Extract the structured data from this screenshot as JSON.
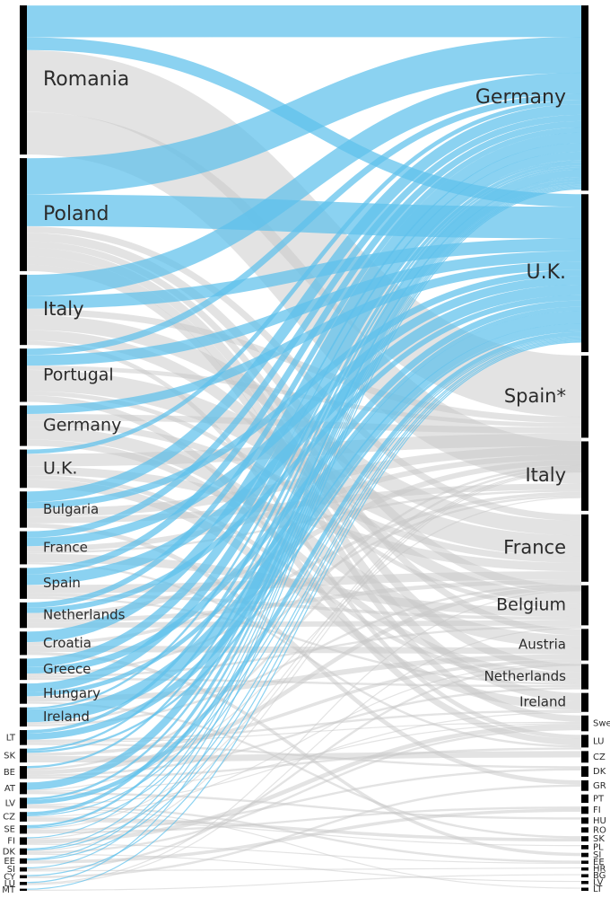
{
  "chart_data": {
    "type": "sankey",
    "title": "",
    "colors": {
      "highlight": "#5ec0ec",
      "base": "#c8c8c8",
      "node": "#000000",
      "background": "#ffffff"
    },
    "highlighted_targets": [
      "Germany",
      "U.K."
    ],
    "sources": [
      {
        "label": "Romania",
        "value": 140
      },
      {
        "label": "Poland",
        "value": 106
      },
      {
        "label": "Italy",
        "value": 66
      },
      {
        "label": "Portugal",
        "value": 50
      },
      {
        "label": "Germany",
        "value": 38
      },
      {
        "label": "U.K.",
        "value": 36
      },
      {
        "label": "Bulgaria",
        "value": 34
      },
      {
        "label": "France",
        "value": 31
      },
      {
        "label": "Spain",
        "value": 29
      },
      {
        "label": "Netherlands",
        "value": 24
      },
      {
        "label": "Croatia",
        "value": 22
      },
      {
        "label": "Greece",
        "value": 20
      },
      {
        "label": "Hungary",
        "value": 19
      },
      {
        "label": "Ireland",
        "value": 18
      },
      {
        "label": "LT",
        "value": 14
      },
      {
        "label": "SK",
        "value": 13
      },
      {
        "label": "BE",
        "value": 12
      },
      {
        "label": "AT",
        "value": 11
      },
      {
        "label": "LV",
        "value": 10
      },
      {
        "label": "CZ",
        "value": 9
      },
      {
        "label": "SE",
        "value": 8
      },
      {
        "label": "FI",
        "value": 7
      },
      {
        "label": "DK",
        "value": 6
      },
      {
        "label": "EE",
        "value": 5
      },
      {
        "label": "SI",
        "value": 4
      },
      {
        "label": "CY",
        "value": 3
      },
      {
        "label": "LU",
        "value": 3
      },
      {
        "label": "MT",
        "value": 2
      }
    ],
    "targets": [
      {
        "label": "Germany",
        "value": 176
      },
      {
        "label": "U.K.",
        "value": 150
      },
      {
        "label": "Spain*",
        "value": 78
      },
      {
        "label": "Italy",
        "value": 66
      },
      {
        "label": "France",
        "value": 64
      },
      {
        "label": "Belgium",
        "value": 38
      },
      {
        "label": "Austria",
        "value": 30
      },
      {
        "label": "Netherlands",
        "value": 24
      },
      {
        "label": "Ireland",
        "value": 18
      },
      {
        "label": "Sweden",
        "value": 15
      },
      {
        "label": "LU",
        "value": 12
      },
      {
        "label": "CZ",
        "value": 11
      },
      {
        "label": "DK",
        "value": 10
      },
      {
        "label": "GR",
        "value": 10
      },
      {
        "label": "PT",
        "value": 8
      },
      {
        "label": "FI",
        "value": 7
      },
      {
        "label": "HU",
        "value": 6
      },
      {
        "label": "RO",
        "value": 5
      },
      {
        "label": "SK",
        "value": 5
      },
      {
        "label": "PL",
        "value": 4
      },
      {
        "label": "SI",
        "value": 4
      },
      {
        "label": "EE",
        "value": 3
      },
      {
        "label": "HR",
        "value": 3
      },
      {
        "label": "BG",
        "value": 3
      },
      {
        "label": "LV",
        "value": 3
      },
      {
        "label": "LT",
        "value": 3
      }
    ],
    "flows": [
      {
        "source": "Romania",
        "target": "Germany",
        "value": 30
      },
      {
        "source": "Romania",
        "target": "U.K.",
        "value": 12
      },
      {
        "source": "Romania",
        "target": "Spain*",
        "value": 58
      },
      {
        "source": "Romania",
        "target": "Italy",
        "value": 40
      },
      {
        "source": "Poland",
        "target": "Germany",
        "value": 34
      },
      {
        "source": "Poland",
        "target": "U.K.",
        "value": 30
      },
      {
        "source": "Poland",
        "target": "Netherlands",
        "value": 8
      },
      {
        "source": "Poland",
        "target": "Belgium",
        "value": 8
      },
      {
        "source": "Poland",
        "target": "Ireland",
        "value": 8
      },
      {
        "source": "Poland",
        "target": "Austria",
        "value": 6
      },
      {
        "source": "Poland",
        "target": "Sweden",
        "value": 6
      },
      {
        "source": "Poland",
        "target": "France",
        "value": 6
      },
      {
        "source": "Italy",
        "target": "Germany",
        "value": 20
      },
      {
        "source": "Italy",
        "target": "U.K.",
        "value": 12
      },
      {
        "source": "Italy",
        "target": "France",
        "value": 14
      },
      {
        "source": "Italy",
        "target": "Belgium",
        "value": 10
      },
      {
        "source": "Italy",
        "target": "Spain*",
        "value": 6
      },
      {
        "source": "Italy",
        "target": "LU",
        "value": 4
      },
      {
        "source": "Portugal",
        "target": "France",
        "value": 20
      },
      {
        "source": "Portugal",
        "target": "U.K.",
        "value": 10
      },
      {
        "source": "Portugal",
        "target": "Germany",
        "value": 6
      },
      {
        "source": "Portugal",
        "target": "LU",
        "value": 6
      },
      {
        "source": "Portugal",
        "target": "Spain*",
        "value": 4
      },
      {
        "source": "Portugal",
        "target": "Belgium",
        "value": 4
      },
      {
        "source": "Germany",
        "target": "Austria",
        "value": 12
      },
      {
        "source": "Germany",
        "target": "U.K.",
        "value": 8
      },
      {
        "source": "Germany",
        "target": "Netherlands",
        "value": 6
      },
      {
        "source": "Germany",
        "target": "Spain*",
        "value": 6
      },
      {
        "source": "Germany",
        "target": "France",
        "value": 6
      },
      {
        "source": "U.K.",
        "target": "Spain*",
        "value": 12
      },
      {
        "source": "U.K.",
        "target": "Ireland",
        "value": 8
      },
      {
        "source": "U.K.",
        "target": "France",
        "value": 8
      },
      {
        "source": "U.K.",
        "target": "Germany",
        "value": 4
      },
      {
        "source": "U.K.",
        "target": "Netherlands",
        "value": 4
      },
      {
        "source": "Bulgaria",
        "target": "Germany",
        "value": 10
      },
      {
        "source": "Bulgaria",
        "target": "Spain*",
        "value": 8
      },
      {
        "source": "Bulgaria",
        "target": "Italy",
        "value": 6
      },
      {
        "source": "Bulgaria",
        "target": "U.K.",
        "value": 6
      },
      {
        "source": "Bulgaria",
        "target": "GR",
        "value": 4
      },
      {
        "source": "France",
        "target": "U.K.",
        "value": 8
      },
      {
        "source": "France",
        "target": "Belgium",
        "value": 8
      },
      {
        "source": "France",
        "target": "Germany",
        "value": 6
      },
      {
        "source": "France",
        "target": "Spain*",
        "value": 5
      },
      {
        "source": "France",
        "target": "LU",
        "value": 2
      },
      {
        "source": "France",
        "target": "Italy",
        "value": 2
      },
      {
        "source": "Spain",
        "target": "U.K.",
        "value": 10
      },
      {
        "source": "Spain",
        "target": "France",
        "value": 8
      },
      {
        "source": "Spain",
        "target": "Germany",
        "value": 6
      },
      {
        "source": "Spain",
        "target": "Belgium",
        "value": 3
      },
      {
        "source": "Spain",
        "target": "Netherlands",
        "value": 2
      },
      {
        "source": "Netherlands",
        "target": "Belgium",
        "value": 5
      },
      {
        "source": "Netherlands",
        "target": "Germany",
        "value": 5
      },
      {
        "source": "Netherlands",
        "target": "U.K.",
        "value": 5
      },
      {
        "source": "Netherlands",
        "target": "Spain*",
        "value": 5
      },
      {
        "source": "Netherlands",
        "target": "France",
        "value": 4
      },
      {
        "source": "Croatia",
        "target": "Germany",
        "value": 10
      },
      {
        "source": "Croatia",
        "target": "Austria",
        "value": 6
      },
      {
        "source": "Croatia",
        "target": "Italy",
        "value": 3
      },
      {
        "source": "Croatia",
        "target": "SI",
        "value": 3
      },
      {
        "source": "Greece",
        "target": "Germany",
        "value": 8
      },
      {
        "source": "Greece",
        "target": "U.K.",
        "value": 6
      },
      {
        "source": "Greece",
        "target": "Netherlands",
        "value": 2
      },
      {
        "source": "Greece",
        "target": "Belgium",
        "value": 2
      },
      {
        "source": "Greece",
        "target": "Italy",
        "value": 2
      },
      {
        "source": "Hungary",
        "target": "Germany",
        "value": 8
      },
      {
        "source": "Hungary",
        "target": "Austria",
        "value": 5
      },
      {
        "source": "Hungary",
        "target": "U.K.",
        "value": 4
      },
      {
        "source": "Hungary",
        "target": "SK",
        "value": 2
      },
      {
        "source": "Ireland",
        "target": "U.K.",
        "value": 12
      },
      {
        "source": "Ireland",
        "target": "Germany",
        "value": 2
      },
      {
        "source": "Ireland",
        "target": "France",
        "value": 2
      },
      {
        "source": "Ireland",
        "target": "Spain*",
        "value": 2
      },
      {
        "source": "LT",
        "target": "U.K.",
        "value": 6
      },
      {
        "source": "LT",
        "target": "Germany",
        "value": 3
      },
      {
        "source": "LT",
        "target": "Ireland",
        "value": 2
      },
      {
        "source": "LT",
        "target": "Sweden",
        "value": 1
      },
      {
        "source": "LT",
        "target": "DK",
        "value": 2
      },
      {
        "source": "SK",
        "target": "CZ",
        "value": 6
      },
      {
        "source": "SK",
        "target": "Austria",
        "value": 3
      },
      {
        "source": "SK",
        "target": "Germany",
        "value": 2
      },
      {
        "source": "SK",
        "target": "U.K.",
        "value": 2
      },
      {
        "source": "BE",
        "target": "France",
        "value": 4
      },
      {
        "source": "BE",
        "target": "Netherlands",
        "value": 2
      },
      {
        "source": "BE",
        "target": "LU",
        "value": 2
      },
      {
        "source": "BE",
        "target": "Spain*",
        "value": 2
      },
      {
        "source": "BE",
        "target": "Germany",
        "value": 2
      },
      {
        "source": "AT",
        "target": "Germany",
        "value": 7
      },
      {
        "source": "AT",
        "target": "Italy",
        "value": 1
      },
      {
        "source": "AT",
        "target": "Sweden",
        "value": 1
      },
      {
        "source": "AT",
        "target": "HU",
        "value": 2
      },
      {
        "source": "LV",
        "target": "U.K.",
        "value": 4
      },
      {
        "source": "LV",
        "target": "Germany",
        "value": 2
      },
      {
        "source": "LV",
        "target": "Ireland",
        "value": 1
      },
      {
        "source": "LV",
        "target": "LT",
        "value": 1
      },
      {
        "source": "LV",
        "target": "EE",
        "value": 2
      },
      {
        "source": "CZ",
        "target": "Germany",
        "value": 3
      },
      {
        "source": "CZ",
        "target": "SK",
        "value": 3
      },
      {
        "source": "CZ",
        "target": "Austria",
        "value": 1
      },
      {
        "source": "CZ",
        "target": "U.K.",
        "value": 1
      },
      {
        "source": "CZ",
        "target": "PL",
        "value": 1
      },
      {
        "source": "SE",
        "target": "DK",
        "value": 2
      },
      {
        "source": "SE",
        "target": "FI",
        "value": 2
      },
      {
        "source": "SE",
        "target": "Spain*",
        "value": 1
      },
      {
        "source": "SE",
        "target": "U.K.",
        "value": 1
      },
      {
        "source": "SE",
        "target": "Germany",
        "value": 2
      },
      {
        "source": "FI",
        "target": "Sweden",
        "value": 4
      },
      {
        "source": "FI",
        "target": "EE",
        "value": 1
      },
      {
        "source": "FI",
        "target": "Germany",
        "value": 1
      },
      {
        "source": "FI",
        "target": "Spain*",
        "value": 1
      },
      {
        "source": "DK",
        "target": "Sweden",
        "value": 2
      },
      {
        "source": "DK",
        "target": "Germany",
        "value": 1
      },
      {
        "source": "DK",
        "target": "U.K.",
        "value": 1
      },
      {
        "source": "DK",
        "target": "Spain*",
        "value": 1
      },
      {
        "source": "DK",
        "target": "LV",
        "value": 1
      },
      {
        "source": "EE",
        "target": "FI",
        "value": 3
      },
      {
        "source": "EE",
        "target": "U.K.",
        "value": 1
      },
      {
        "source": "EE",
        "target": "Germany",
        "value": 1
      },
      {
        "source": "SI",
        "target": "Austria",
        "value": 2
      },
      {
        "source": "SI",
        "target": "Germany",
        "value": 1
      },
      {
        "source": "SI",
        "target": "HR",
        "value": 1
      },
      {
        "source": "CY",
        "target": "GR",
        "value": 2
      },
      {
        "source": "CY",
        "target": "U.K.",
        "value": 1
      },
      {
        "source": "LU",
        "target": "Belgium",
        "value": 1
      },
      {
        "source": "LU",
        "target": "France",
        "value": 1
      },
      {
        "source": "LU",
        "target": "Germany",
        "value": 1
      },
      {
        "source": "MT",
        "target": "U.K.",
        "value": 1
      },
      {
        "source": "MT",
        "target": "BG",
        "value": 1
      }
    ]
  }
}
